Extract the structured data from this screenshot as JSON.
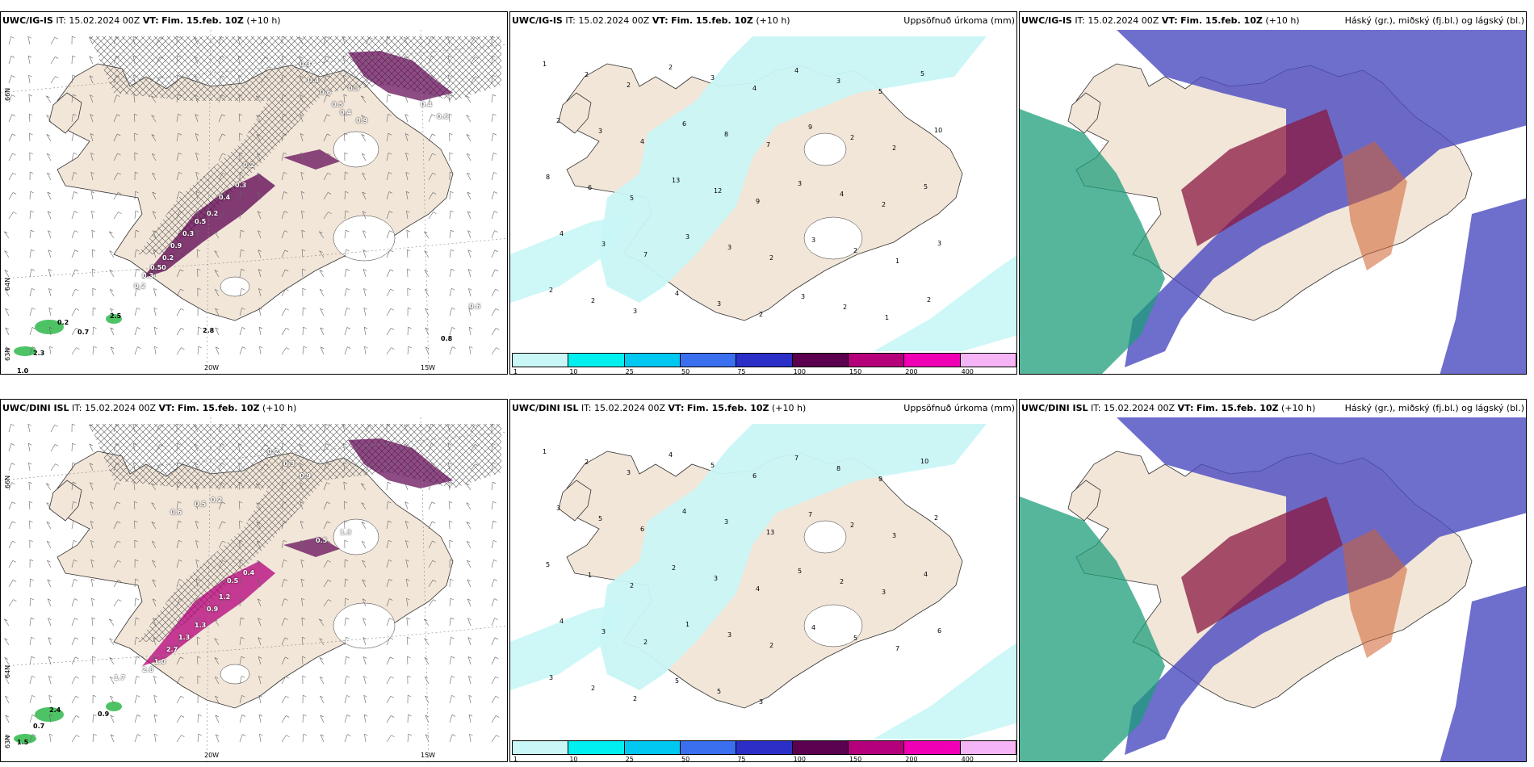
{
  "rows": [
    {
      "model": "UWC/IG-IS",
      "it_label": "IT:",
      "it_value": "15.02.2024 00Z",
      "vt_label": "VT:",
      "vt_value": "Fim. 15.feb. 10Z",
      "lead": "(+10 h)",
      "left_panel": {
        "labels": [
          "0.3",
          "0.4",
          "0.6",
          "0.5",
          "0.4",
          "0.3",
          "0.9",
          "0.2",
          "0.3",
          "0.4",
          "0.2",
          "0.5",
          "0.3",
          "0.9",
          "0.2",
          "0.50",
          "0.3",
          "0.2",
          "0.4",
          "0.6",
          "0.2",
          "0.7",
          "2.5",
          "2.8",
          "1.0",
          "0.6",
          "0.8",
          "2.3"
        ],
        "lon_ticks": [
          "20W",
          "15W"
        ],
        "lat_ticks": [
          "66N",
          "64N",
          "63N"
        ]
      },
      "middle_panel": {
        "title": "Uppsöfnuð úrkoma (mm)",
        "labels": [
          "1",
          "2",
          "2",
          "2",
          "3",
          "4",
          "4",
          "3",
          "5",
          "5",
          "2",
          "3",
          "4",
          "6",
          "8",
          "7",
          "9",
          "2",
          "2",
          "10",
          "8",
          "6",
          "5",
          "13",
          "12",
          "9",
          "3",
          "4",
          "2",
          "5",
          "4",
          "3",
          "7",
          "3",
          "3",
          "2",
          "3",
          "2",
          "1",
          "3",
          "2",
          "2",
          "3",
          "4",
          "3",
          "2",
          "3",
          "2",
          "1",
          "2"
        ],
        "colorbar": [
          "1",
          "10",
          "25",
          "50",
          "75",
          "100",
          "150",
          "200",
          "400"
        ]
      },
      "right_panel": {
        "title": "Háský (gr.), miðský (fj.bl.) og lágský (bl.)"
      }
    },
    {
      "model": "UWC/DINI ISL",
      "it_label": "IT:",
      "it_value": "15.02.2024 00Z",
      "vt_label": "VT:",
      "vt_value": "Fim. 15.feb. 10Z",
      "lead": "(+10 h)",
      "left_panel": {
        "labels": [
          "0.2",
          "0.3",
          "0.9",
          "0.2",
          "0.5",
          "0.6",
          "0.5",
          "1.3",
          "0.4",
          "0.5",
          "1.2",
          "0.9",
          "1.3",
          "1.3",
          "2.7",
          "1.0",
          "2.8",
          "1.7",
          "2.4",
          "0.7",
          "0.9",
          "1.5"
        ],
        "lon_ticks": [
          "20W",
          "15W"
        ],
        "lat_ticks": [
          "66N",
          "64N",
          "63N"
        ]
      },
      "middle_panel": {
        "title": "Uppsöfnuð úrkoma (mm)",
        "labels": [
          "1",
          "2",
          "3",
          "4",
          "5",
          "6",
          "7",
          "8",
          "9",
          "10",
          "3",
          "5",
          "6",
          "4",
          "3",
          "13",
          "7",
          "2",
          "3",
          "2",
          "5",
          "1",
          "2",
          "2",
          "3",
          "4",
          "5",
          "2",
          "3",
          "4",
          "4",
          "3",
          "2",
          "1",
          "3",
          "2",
          "4",
          "5",
          "7",
          "6",
          "3",
          "2",
          "2",
          "5",
          "5",
          "3"
        ],
        "colorbar": [
          "1",
          "10",
          "25",
          "50",
          "75",
          "100",
          "150",
          "200",
          "400"
        ]
      },
      "right_panel": {
        "title": "Háský (gr.), miðský (fj.bl.) og lágský (bl.)"
      }
    }
  ],
  "colors": {
    "land": "#f2e6d9",
    "precip_1": "#c9f6f6",
    "precip_10": "#00f0f0",
    "precip_25": "#00c8f0",
    "precip_50": "#3a6ff0",
    "precip_75": "#2b2fc8",
    "precip_100": "#5c0050",
    "precip_150": "#b4007a",
    "precip_200": "#f000b4",
    "precip_400": "#f5b4f5",
    "cloud_high": "#1e9e7a",
    "cloud_mid": "#4a4ac0",
    "cloud_low": "#8a1840"
  }
}
